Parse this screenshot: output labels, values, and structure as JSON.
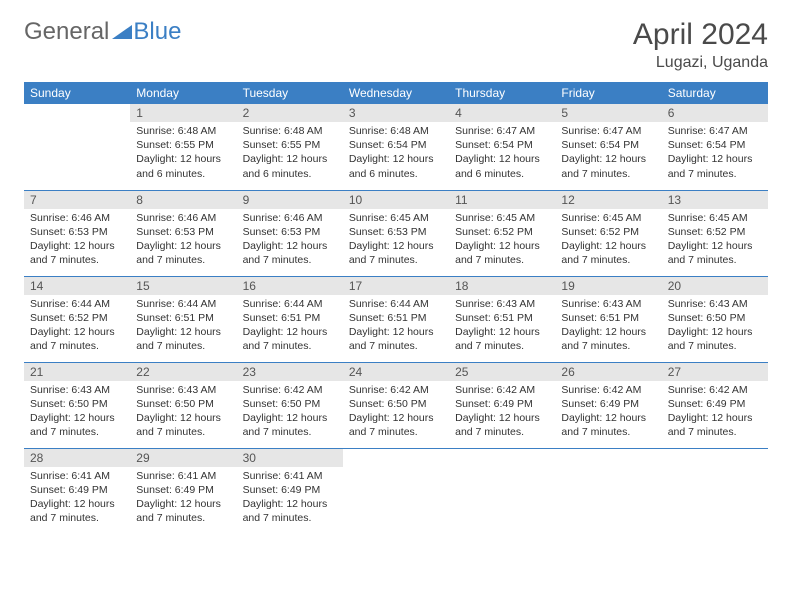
{
  "logo": {
    "text1": "General",
    "text2": "Blue"
  },
  "header": {
    "title": "April 2024",
    "location": "Lugazi, Uganda"
  },
  "colors": {
    "header_bg": "#3b7fc4",
    "header_text": "#ffffff",
    "daynum_bg": "#e6e6e6",
    "row_border": "#3b7fc4",
    "body_text": "#333333",
    "page_bg": "#ffffff"
  },
  "weekdays": [
    "Sunday",
    "Monday",
    "Tuesday",
    "Wednesday",
    "Thursday",
    "Friday",
    "Saturday"
  ],
  "grid": [
    [
      null,
      {
        "n": "1",
        "sr": "6:48 AM",
        "ss": "6:55 PM",
        "dl": "12 hours and 6 minutes."
      },
      {
        "n": "2",
        "sr": "6:48 AM",
        "ss": "6:55 PM",
        "dl": "12 hours and 6 minutes."
      },
      {
        "n": "3",
        "sr": "6:48 AM",
        "ss": "6:54 PM",
        "dl": "12 hours and 6 minutes."
      },
      {
        "n": "4",
        "sr": "6:47 AM",
        "ss": "6:54 PM",
        "dl": "12 hours and 6 minutes."
      },
      {
        "n": "5",
        "sr": "6:47 AM",
        "ss": "6:54 PM",
        "dl": "12 hours and 7 minutes."
      },
      {
        "n": "6",
        "sr": "6:47 AM",
        "ss": "6:54 PM",
        "dl": "12 hours and 7 minutes."
      }
    ],
    [
      {
        "n": "7",
        "sr": "6:46 AM",
        "ss": "6:53 PM",
        "dl": "12 hours and 7 minutes."
      },
      {
        "n": "8",
        "sr": "6:46 AM",
        "ss": "6:53 PM",
        "dl": "12 hours and 7 minutes."
      },
      {
        "n": "9",
        "sr": "6:46 AM",
        "ss": "6:53 PM",
        "dl": "12 hours and 7 minutes."
      },
      {
        "n": "10",
        "sr": "6:45 AM",
        "ss": "6:53 PM",
        "dl": "12 hours and 7 minutes."
      },
      {
        "n": "11",
        "sr": "6:45 AM",
        "ss": "6:52 PM",
        "dl": "12 hours and 7 minutes."
      },
      {
        "n": "12",
        "sr": "6:45 AM",
        "ss": "6:52 PM",
        "dl": "12 hours and 7 minutes."
      },
      {
        "n": "13",
        "sr": "6:45 AM",
        "ss": "6:52 PM",
        "dl": "12 hours and 7 minutes."
      }
    ],
    [
      {
        "n": "14",
        "sr": "6:44 AM",
        "ss": "6:52 PM",
        "dl": "12 hours and 7 minutes."
      },
      {
        "n": "15",
        "sr": "6:44 AM",
        "ss": "6:51 PM",
        "dl": "12 hours and 7 minutes."
      },
      {
        "n": "16",
        "sr": "6:44 AM",
        "ss": "6:51 PM",
        "dl": "12 hours and 7 minutes."
      },
      {
        "n": "17",
        "sr": "6:44 AM",
        "ss": "6:51 PM",
        "dl": "12 hours and 7 minutes."
      },
      {
        "n": "18",
        "sr": "6:43 AM",
        "ss": "6:51 PM",
        "dl": "12 hours and 7 minutes."
      },
      {
        "n": "19",
        "sr": "6:43 AM",
        "ss": "6:51 PM",
        "dl": "12 hours and 7 minutes."
      },
      {
        "n": "20",
        "sr": "6:43 AM",
        "ss": "6:50 PM",
        "dl": "12 hours and 7 minutes."
      }
    ],
    [
      {
        "n": "21",
        "sr": "6:43 AM",
        "ss": "6:50 PM",
        "dl": "12 hours and 7 minutes."
      },
      {
        "n": "22",
        "sr": "6:43 AM",
        "ss": "6:50 PM",
        "dl": "12 hours and 7 minutes."
      },
      {
        "n": "23",
        "sr": "6:42 AM",
        "ss": "6:50 PM",
        "dl": "12 hours and 7 minutes."
      },
      {
        "n": "24",
        "sr": "6:42 AM",
        "ss": "6:50 PM",
        "dl": "12 hours and 7 minutes."
      },
      {
        "n": "25",
        "sr": "6:42 AM",
        "ss": "6:49 PM",
        "dl": "12 hours and 7 minutes."
      },
      {
        "n": "26",
        "sr": "6:42 AM",
        "ss": "6:49 PM",
        "dl": "12 hours and 7 minutes."
      },
      {
        "n": "27",
        "sr": "6:42 AM",
        "ss": "6:49 PM",
        "dl": "12 hours and 7 minutes."
      }
    ],
    [
      {
        "n": "28",
        "sr": "6:41 AM",
        "ss": "6:49 PM",
        "dl": "12 hours and 7 minutes."
      },
      {
        "n": "29",
        "sr": "6:41 AM",
        "ss": "6:49 PM",
        "dl": "12 hours and 7 minutes."
      },
      {
        "n": "30",
        "sr": "6:41 AM",
        "ss": "6:49 PM",
        "dl": "12 hours and 7 minutes."
      },
      null,
      null,
      null,
      null
    ]
  ],
  "labels": {
    "sunrise": "Sunrise:",
    "sunset": "Sunset:",
    "daylight": "Daylight:"
  }
}
